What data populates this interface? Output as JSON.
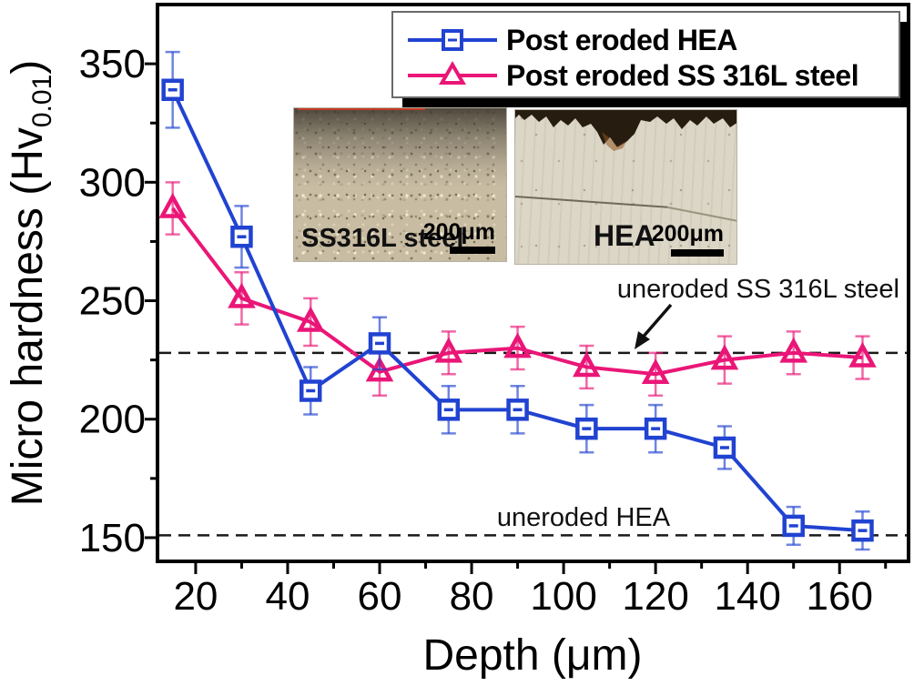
{
  "figure": {
    "background": "#ffffff",
    "axis_color": "#000000",
    "ref_line_color": "#1a1a1a"
  },
  "chart_data": {
    "type": "line",
    "title": "",
    "xlabel": "Depth (μm)",
    "ylabel_main": "Micro hardness (Hv",
    "ylabel_sub": "0.01",
    "ylabel_close": ")",
    "xlim": [
      11.7,
      175
    ],
    "ylim": [
      140,
      375
    ],
    "grid": false,
    "legend_position": "top-right",
    "x_major_ticks": [
      20,
      40,
      60,
      80,
      100,
      120,
      140,
      160
    ],
    "x_minor_ticks": [
      30,
      50,
      70,
      90,
      110,
      130,
      150,
      170
    ],
    "y_major_ticks": [
      150,
      200,
      250,
      300,
      350
    ],
    "y_minor_ticks": [
      175,
      225,
      275,
      325
    ],
    "x": [
      15,
      30,
      45,
      60,
      75,
      90,
      105,
      120,
      135,
      150,
      165
    ],
    "series": [
      {
        "name": "Post eroded HEA",
        "color": "#2143d1",
        "marker": "square",
        "values": [
          339,
          277,
          212,
          232,
          204,
          204,
          196,
          196,
          188,
          155,
          153
        ],
        "errors": [
          16,
          13,
          10,
          11,
          10,
          10,
          10,
          10,
          9,
          8,
          8
        ]
      },
      {
        "name": "Post eroded SS 316L steel",
        "color": "#ea1677",
        "marker": "triangle",
        "values": [
          289,
          251,
          241,
          220,
          228,
          230,
          222,
          219,
          225,
          228,
          226
        ],
        "errors": [
          11,
          11,
          10,
          10,
          9,
          9,
          9,
          9,
          10,
          9,
          9
        ]
      }
    ],
    "reference_lines": [
      {
        "label": "uneroded SS 316L steel",
        "value": 228
      },
      {
        "label": "uneroded HEA",
        "value": 151
      }
    ]
  },
  "insets": [
    {
      "label": "SS316L steel",
      "scale_label": "200μm"
    },
    {
      "label": "HEA",
      "scale_label": "200μm"
    }
  ]
}
